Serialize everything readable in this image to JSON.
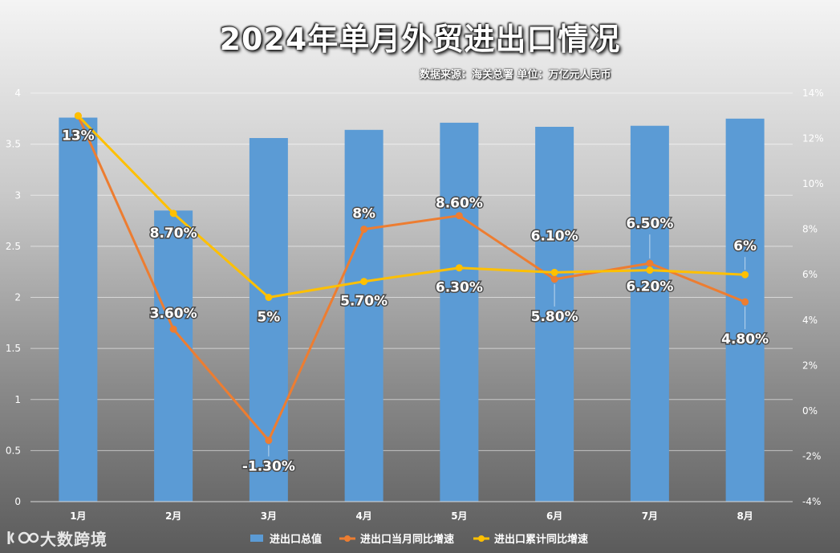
{
  "title": "2024年单月外贸进出口情况",
  "source_note": "数据来源：海关总署 单位：万亿元人民币",
  "watermark": "大数跨境",
  "chart_data": {
    "type": "bar",
    "categories": [
      "1月",
      "2月",
      "3月",
      "4月",
      "5月",
      "6月",
      "7月",
      "8月"
    ],
    "series": [
      {
        "name": "进出口总值",
        "type": "bar",
        "axis": "left",
        "color": "#5b9bd5",
        "values": [
          3.76,
          2.85,
          3.56,
          3.64,
          3.71,
          3.67,
          3.68,
          3.75
        ]
      },
      {
        "name": "进出口当月同比增速",
        "type": "line",
        "axis": "right",
        "color": "#ed7d31",
        "values": [
          13,
          3.6,
          -1.3,
          8,
          8.6,
          5.8,
          6.5,
          4.8
        ],
        "labels": [
          "13%",
          "3.60%",
          "-1.30%",
          "8%",
          "8.60%",
          "5.80%",
          "6.50%",
          "4.80%"
        ]
      },
      {
        "name": "进出口累计同比增速",
        "type": "line",
        "axis": "right",
        "color": "#ffc000",
        "values": [
          13,
          8.7,
          5,
          5.7,
          6.3,
          6.1,
          6.2,
          6
        ],
        "labels": [
          "",
          "8.70%",
          "5%",
          "5.70%",
          "6.30%",
          "6.10%",
          "6.20%",
          "6%"
        ]
      }
    ],
    "y_left": {
      "min": 0,
      "max": 4,
      "step": 0.5,
      "ticks": [
        "0",
        "0.5",
        "1",
        "1.5",
        "2",
        "2.5",
        "3",
        "3.5",
        "4"
      ]
    },
    "y_right": {
      "min": -4,
      "max": 14,
      "step": 2,
      "ticks": [
        "-4%",
        "-2%",
        "0%",
        "2%",
        "4%",
        "6%",
        "8%",
        "10%",
        "12%",
        "14%"
      ]
    },
    "grid": true,
    "legend_position": "bottom"
  }
}
